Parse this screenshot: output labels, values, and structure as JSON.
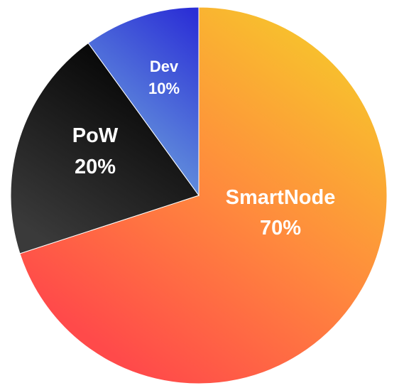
{
  "chart_data": {
    "type": "pie",
    "start_angle_deg": 0,
    "direction": "clockwise",
    "slices": [
      {
        "name": "SmartNode",
        "percent_label": "70%",
        "value": 70,
        "colors": [
          "#f7c52c",
          "#ff8a3d",
          "#ff4a4a"
        ],
        "text_color": "#ffffff",
        "label_size": "large"
      },
      {
        "name": "PoW",
        "percent_label": "20%",
        "value": 20,
        "colors": [
          "#050505",
          "#3a3a3a"
        ],
        "text_color": "#ffffff",
        "label_size": "large"
      },
      {
        "name": "Dev",
        "percent_label": "10%",
        "value": 10,
        "colors": [
          "#2b2fd6",
          "#6fa7dd"
        ],
        "text_color": "#ffffff",
        "label_size": "small"
      }
    ]
  }
}
